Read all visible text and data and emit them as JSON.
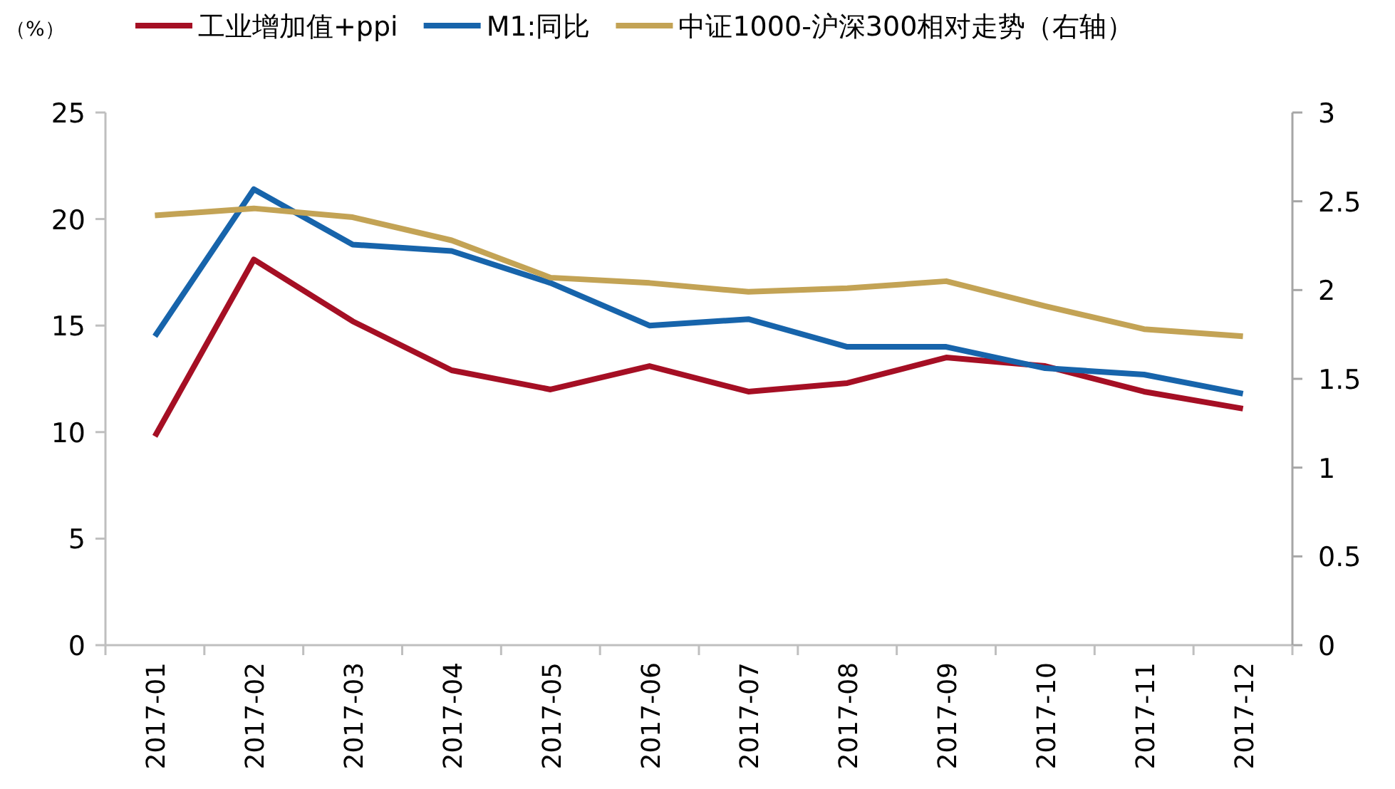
{
  "chart_data": {
    "type": "line",
    "ylabel": "（%）",
    "categories": [
      "2017-01",
      "2017-02",
      "2017-03",
      "2017-04",
      "2017-05",
      "2017-06",
      "2017-07",
      "2017-08",
      "2017-09",
      "2017-10",
      "2017-11",
      "2017-12"
    ],
    "series": [
      {
        "name": "工业增加值+ppi",
        "color": "#a50f24",
        "values": [
          9.8,
          18.1,
          15.2,
          12.9,
          12.0,
          13.1,
          11.9,
          12.3,
          13.5,
          13.1,
          11.9,
          11.1
        ]
      },
      {
        "name": "M1:同比",
        "color": "#1764ab",
        "values": [
          14.5,
          21.4,
          18.8,
          18.5,
          17.0,
          15.0,
          15.3,
          14.0,
          14.0,
          13.0,
          12.7,
          11.8
        ]
      },
      {
        "name": "中证1000-沪深300相对走势（右轴）",
        "color": "#c3a355",
        "axis": "y2",
        "values": [
          2.42,
          2.46,
          2.41,
          2.28,
          2.07,
          2.04,
          1.99,
          2.01,
          2.05,
          1.91,
          1.78,
          1.74
        ]
      }
    ],
    "ylim": [
      0,
      25
    ],
    "yticks": [
      0,
      5,
      10,
      15,
      20,
      25
    ],
    "y2lim": [
      0,
      3
    ],
    "y2ticks": [
      0,
      0.5,
      1,
      1.5,
      2,
      2.5,
      3
    ],
    "grid": false,
    "legend": "top",
    "marker": "none",
    "line_style": "solid"
  }
}
